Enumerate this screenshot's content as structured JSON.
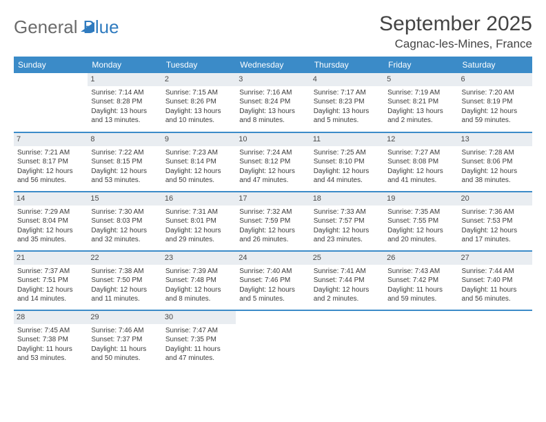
{
  "brand": {
    "part1": "General",
    "part2": "Blue"
  },
  "title": "September 2025",
  "location": "Cagnac-les-Mines, France",
  "colors": {
    "header_bg": "#3b8bc8",
    "header_text": "#ffffff",
    "daynum_bg": "#e9edf1",
    "row_border": "#3b8bc8",
    "body_text": "#3a3a3a"
  },
  "day_headers": [
    "Sunday",
    "Monday",
    "Tuesday",
    "Wednesday",
    "Thursday",
    "Friday",
    "Saturday"
  ],
  "weeks": [
    [
      null,
      {
        "n": "1",
        "sr": "7:14 AM",
        "ss": "8:28 PM",
        "dl": "13 hours and 13 minutes."
      },
      {
        "n": "2",
        "sr": "7:15 AM",
        "ss": "8:26 PM",
        "dl": "13 hours and 10 minutes."
      },
      {
        "n": "3",
        "sr": "7:16 AM",
        "ss": "8:24 PM",
        "dl": "13 hours and 8 minutes."
      },
      {
        "n": "4",
        "sr": "7:17 AM",
        "ss": "8:23 PM",
        "dl": "13 hours and 5 minutes."
      },
      {
        "n": "5",
        "sr": "7:19 AM",
        "ss": "8:21 PM",
        "dl": "13 hours and 2 minutes."
      },
      {
        "n": "6",
        "sr": "7:20 AM",
        "ss": "8:19 PM",
        "dl": "12 hours and 59 minutes."
      }
    ],
    [
      {
        "n": "7",
        "sr": "7:21 AM",
        "ss": "8:17 PM",
        "dl": "12 hours and 56 minutes."
      },
      {
        "n": "8",
        "sr": "7:22 AM",
        "ss": "8:15 PM",
        "dl": "12 hours and 53 minutes."
      },
      {
        "n": "9",
        "sr": "7:23 AM",
        "ss": "8:14 PM",
        "dl": "12 hours and 50 minutes."
      },
      {
        "n": "10",
        "sr": "7:24 AM",
        "ss": "8:12 PM",
        "dl": "12 hours and 47 minutes."
      },
      {
        "n": "11",
        "sr": "7:25 AM",
        "ss": "8:10 PM",
        "dl": "12 hours and 44 minutes."
      },
      {
        "n": "12",
        "sr": "7:27 AM",
        "ss": "8:08 PM",
        "dl": "12 hours and 41 minutes."
      },
      {
        "n": "13",
        "sr": "7:28 AM",
        "ss": "8:06 PM",
        "dl": "12 hours and 38 minutes."
      }
    ],
    [
      {
        "n": "14",
        "sr": "7:29 AM",
        "ss": "8:04 PM",
        "dl": "12 hours and 35 minutes."
      },
      {
        "n": "15",
        "sr": "7:30 AM",
        "ss": "8:03 PM",
        "dl": "12 hours and 32 minutes."
      },
      {
        "n": "16",
        "sr": "7:31 AM",
        "ss": "8:01 PM",
        "dl": "12 hours and 29 minutes."
      },
      {
        "n": "17",
        "sr": "7:32 AM",
        "ss": "7:59 PM",
        "dl": "12 hours and 26 minutes."
      },
      {
        "n": "18",
        "sr": "7:33 AM",
        "ss": "7:57 PM",
        "dl": "12 hours and 23 minutes."
      },
      {
        "n": "19",
        "sr": "7:35 AM",
        "ss": "7:55 PM",
        "dl": "12 hours and 20 minutes."
      },
      {
        "n": "20",
        "sr": "7:36 AM",
        "ss": "7:53 PM",
        "dl": "12 hours and 17 minutes."
      }
    ],
    [
      {
        "n": "21",
        "sr": "7:37 AM",
        "ss": "7:51 PM",
        "dl": "12 hours and 14 minutes."
      },
      {
        "n": "22",
        "sr": "7:38 AM",
        "ss": "7:50 PM",
        "dl": "12 hours and 11 minutes."
      },
      {
        "n": "23",
        "sr": "7:39 AM",
        "ss": "7:48 PM",
        "dl": "12 hours and 8 minutes."
      },
      {
        "n": "24",
        "sr": "7:40 AM",
        "ss": "7:46 PM",
        "dl": "12 hours and 5 minutes."
      },
      {
        "n": "25",
        "sr": "7:41 AM",
        "ss": "7:44 PM",
        "dl": "12 hours and 2 minutes."
      },
      {
        "n": "26",
        "sr": "7:43 AM",
        "ss": "7:42 PM",
        "dl": "11 hours and 59 minutes."
      },
      {
        "n": "27",
        "sr": "7:44 AM",
        "ss": "7:40 PM",
        "dl": "11 hours and 56 minutes."
      }
    ],
    [
      {
        "n": "28",
        "sr": "7:45 AM",
        "ss": "7:38 PM",
        "dl": "11 hours and 53 minutes."
      },
      {
        "n": "29",
        "sr": "7:46 AM",
        "ss": "7:37 PM",
        "dl": "11 hours and 50 minutes."
      },
      {
        "n": "30",
        "sr": "7:47 AM",
        "ss": "7:35 PM",
        "dl": "11 hours and 47 minutes."
      },
      null,
      null,
      null,
      null
    ]
  ],
  "labels": {
    "sunrise": "Sunrise:",
    "sunset": "Sunset:",
    "daylight": "Daylight:"
  }
}
